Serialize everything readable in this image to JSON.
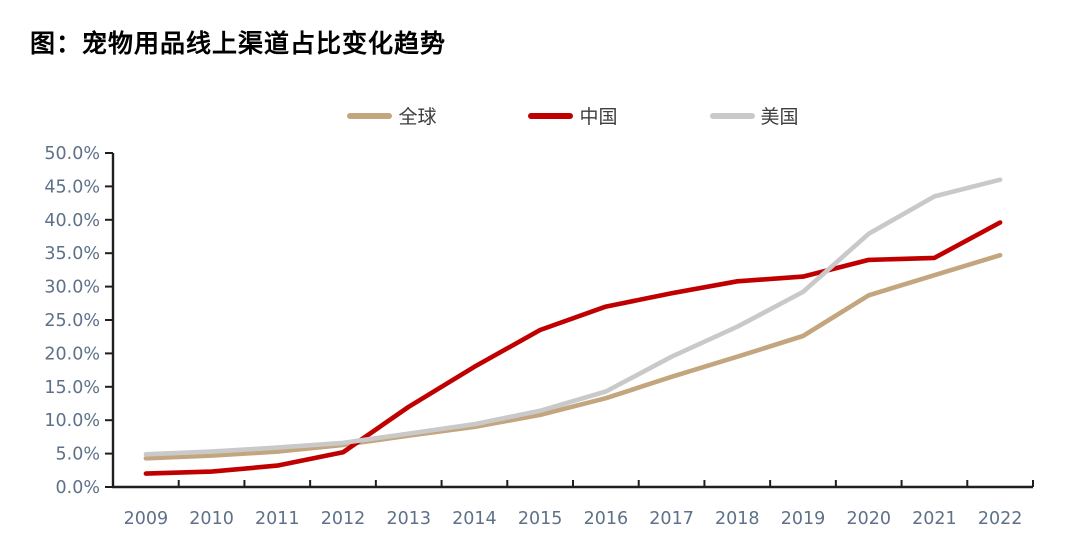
{
  "title": "图：宠物用品线上渠道占比变化趋势",
  "legend": {
    "items": [
      {
        "label": "全球",
        "color": "#C3A57E"
      },
      {
        "label": "中国",
        "color": "#C00000"
      },
      {
        "label": "美国",
        "color": "#C9C9C9"
      }
    ]
  },
  "chart_data": {
    "type": "line",
    "title": "图：宠物用品线上渠道占比变化趋势",
    "x": [
      "2009",
      "2010",
      "2011",
      "2012",
      "2013",
      "2014",
      "2015",
      "2016",
      "2017",
      "2018",
      "2019",
      "2020",
      "2021",
      "2022"
    ],
    "series": [
      {
        "name": "全球",
        "color": "#C3A57E",
        "values": [
          4.3,
          4.7,
          5.3,
          6.3,
          7.7,
          9.0,
          10.8,
          13.3,
          16.5,
          19.5,
          22.6,
          28.7,
          31.7,
          34.7
        ]
      },
      {
        "name": "中国",
        "color": "#C00000",
        "values": [
          2.0,
          2.3,
          3.2,
          5.2,
          12.0,
          18.0,
          23.5,
          27.0,
          29.0,
          30.8,
          31.5,
          34.0,
          34.3,
          39.6
        ]
      },
      {
        "name": "美国",
        "color": "#C9C9C9",
        "values": [
          4.9,
          5.3,
          5.9,
          6.6,
          8.0,
          9.4,
          11.4,
          14.3,
          19.5,
          24.0,
          29.2,
          37.9,
          43.5,
          46.0
        ]
      }
    ],
    "xlabel": "",
    "ylabel": "",
    "ylim": [
      0,
      50
    ],
    "ytick_step": 5,
    "ytick_labels": [
      "0.0%",
      "5.0%",
      "10.0%",
      "15.0%",
      "20.0%",
      "25.0%",
      "30.0%",
      "35.0%",
      "40.0%",
      "45.0%",
      "50.0%"
    ],
    "grid": false,
    "legend_position": "top",
    "axis_color": "#1f1f1f",
    "tick_label_color": "#5E7189"
  }
}
